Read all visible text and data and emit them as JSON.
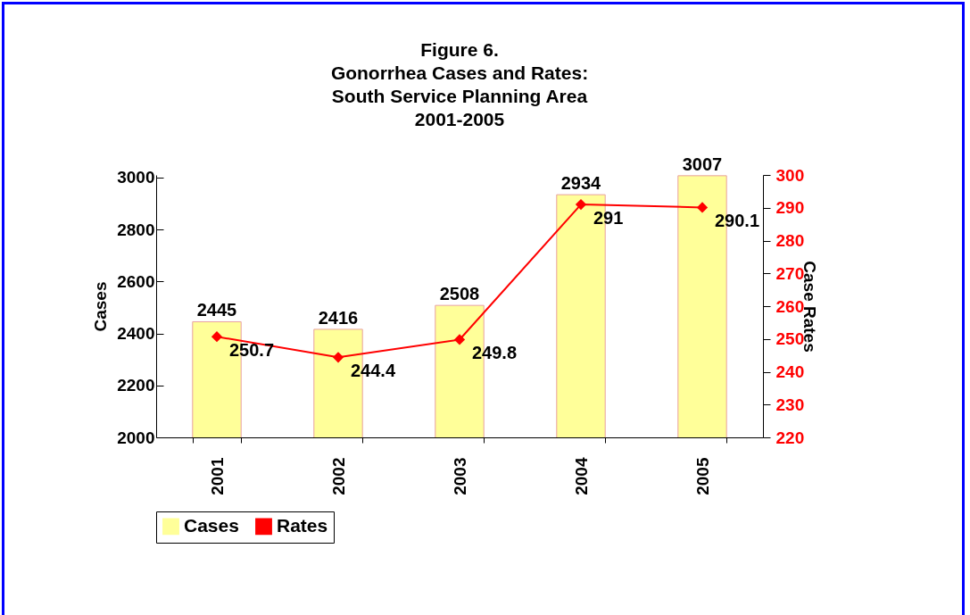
{
  "chart_data": {
    "type": "bar",
    "title": "Figure 6.\nGonorrhea Cases and Rates:\nSouth Service Planning Area\n2001-2005",
    "ylabel": "Cases",
    "y2label": "Case Rates",
    "categories": [
      "2001",
      "2002",
      "2003",
      "2004",
      "2005"
    ],
    "series": [
      {
        "name": "Cases",
        "color": "#ffff99",
        "values": [
          2445,
          2416,
          2508,
          2934,
          3007
        ]
      },
      {
        "name": "Rates",
        "type": "line",
        "axis": "y2",
        "color": "#ff0000",
        "values": [
          250.7,
          244.4,
          249.8,
          291,
          290.1
        ]
      }
    ],
    "ylim": [
      2000,
      3010
    ],
    "yticks": [
      2000,
      2200,
      2400,
      2600,
      2800,
      3000
    ],
    "y2lim": [
      220,
      300
    ],
    "y2ticks": [
      220,
      230,
      240,
      250,
      260,
      270,
      280,
      290,
      300
    ],
    "data_labels": true,
    "marker": "diamond",
    "legend": "bottom",
    "grid": false
  }
}
